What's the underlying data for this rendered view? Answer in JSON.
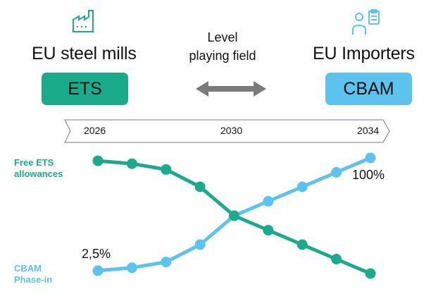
{
  "left": {
    "title": "EU steel mills",
    "box_label": "ETS",
    "icon": "factory-icon"
  },
  "right": {
    "title": "EU Importers",
    "box_label": "CBAM",
    "icon": "person-clipboard-icon"
  },
  "center": {
    "line1": "Level",
    "line2": "playing field",
    "arrow": "double-arrow-icon"
  },
  "timeline": {
    "ticks": [
      "2026",
      "2030",
      "2034"
    ]
  },
  "labels": {
    "free_line1": "Free ETS",
    "free_line2": "allowances",
    "cbam_line1": "CBAM",
    "cbam_line2": "Phase-in",
    "start_pct": "2,5%",
    "end_pct": "100%"
  },
  "colors": {
    "green": "#1aab8a",
    "blue": "#5cc3ee",
    "box_green": "#1aab8a",
    "box_blue": "#5cc3ee",
    "arrow": "#7a7a7a"
  },
  "chart_data": {
    "type": "line",
    "x": [
      2026,
      2027,
      2028,
      2029,
      2030,
      2031,
      2032,
      2033,
      2034
    ],
    "series": [
      {
        "name": "Free ETS allowances",
        "values": [
          97.5,
          95,
          90,
          75,
          50,
          37.5,
          25,
          12.5,
          0
        ]
      },
      {
        "name": "CBAM Phase-in",
        "values": [
          2.5,
          5,
          10,
          25,
          50,
          62.5,
          75,
          87.5,
          100
        ]
      }
    ],
    "ylim": [
      0,
      100
    ]
  }
}
